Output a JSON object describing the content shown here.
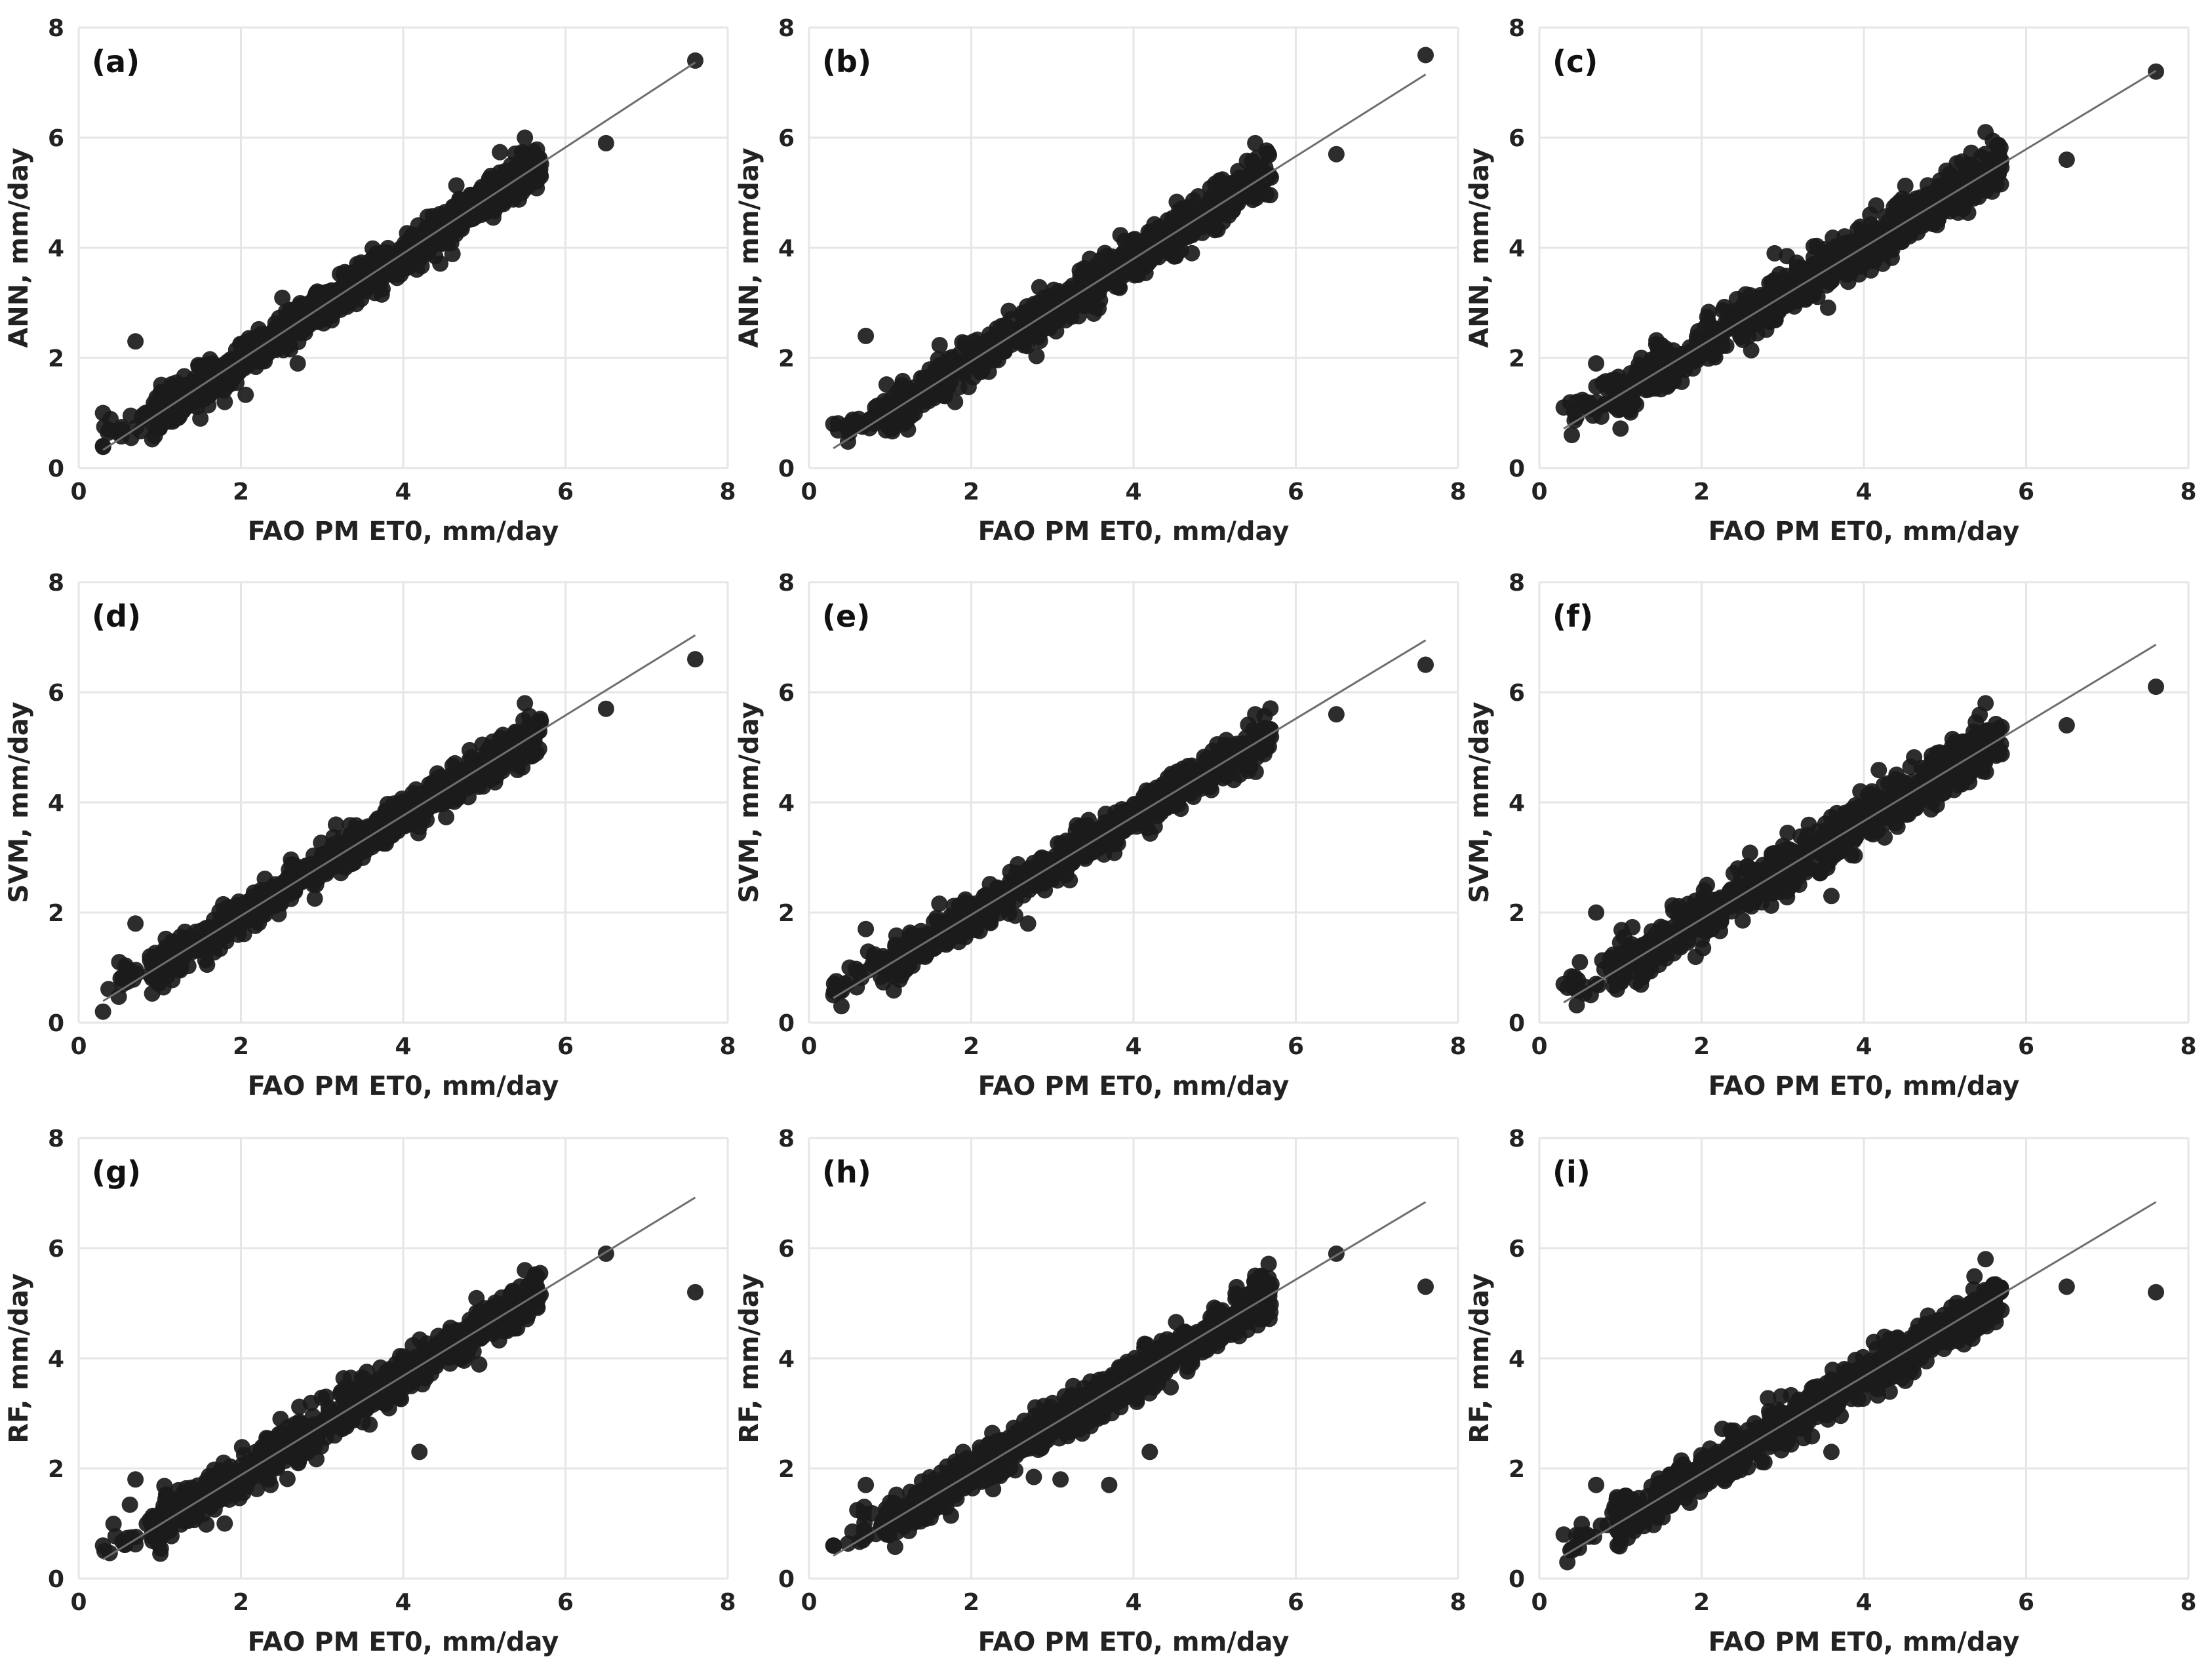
{
  "colors": {
    "point": "#1b1b1b",
    "fit_line": "#6e6e6e",
    "grid": "#e6e6e6",
    "background": "#ffffff"
  },
  "chart_data": [
    {
      "id": "a",
      "type": "scatter",
      "panel_label": "(a)",
      "model": "ANN",
      "title": "",
      "xlabel": "FAO PM ET0, mm/day",
      "ylabel": "ANN, mm/day",
      "xlim": [
        0,
        8
      ],
      "ylim": [
        0,
        8
      ],
      "xticks": [
        "0",
        "2",
        "4",
        "6",
        "8"
      ],
      "yticks": [
        "0",
        "2",
        "4",
        "6",
        "8"
      ],
      "fit": {
        "slope": 0.964,
        "intercept": 0.04
      },
      "noise": 0.2,
      "seed": 11,
      "n_cloud": 700,
      "points": [
        [
          0.3,
          0.4
        ],
        [
          0.3,
          1.0
        ],
        [
          0.7,
          2.3
        ],
        [
          1.5,
          0.9
        ],
        [
          1.8,
          1.2
        ],
        [
          2.7,
          1.9
        ],
        [
          5.5,
          6.0
        ],
        [
          6.5,
          5.9
        ],
        [
          7.6,
          7.4
        ]
      ]
    },
    {
      "id": "b",
      "type": "scatter",
      "panel_label": "(b)",
      "model": "ANN",
      "title": "",
      "xlabel": "FAO PM ET0, mm/day",
      "ylabel": "ANN, mm/day",
      "xlim": [
        0,
        8
      ],
      "ylim": [
        0,
        8
      ],
      "xticks": [
        "0",
        "2",
        "4",
        "6",
        "8"
      ],
      "yticks": [
        "0",
        "2",
        "4",
        "6",
        "8"
      ],
      "fit": {
        "slope": 0.93,
        "intercept": 0.08
      },
      "noise": 0.2,
      "seed": 23,
      "n_cloud": 700,
      "points": [
        [
          0.3,
          0.8
        ],
        [
          0.7,
          2.4
        ],
        [
          1.8,
          1.2
        ],
        [
          5.5,
          5.9
        ],
        [
          6.5,
          5.7
        ],
        [
          7.6,
          7.5
        ]
      ]
    },
    {
      "id": "c",
      "type": "scatter",
      "panel_label": "(c)",
      "model": "ANN",
      "title": "",
      "xlabel": "FAO PM ET0, mm/day",
      "ylabel": "ANN, mm/day",
      "xlim": [
        0,
        8
      ],
      "ylim": [
        0,
        8
      ],
      "xticks": [
        "0",
        "2",
        "4",
        "6",
        "8"
      ],
      "yticks": [
        "0",
        "2",
        "4",
        "6",
        "8"
      ],
      "fit": {
        "slope": 0.89,
        "intercept": 0.45
      },
      "noise": 0.22,
      "seed": 37,
      "n_cloud": 700,
      "points": [
        [
          0.3,
          1.1
        ],
        [
          0.4,
          0.6
        ],
        [
          0.7,
          1.9
        ],
        [
          2.9,
          3.9
        ],
        [
          5.5,
          6.1
        ],
        [
          6.5,
          5.6
        ],
        [
          7.6,
          7.2
        ]
      ]
    },
    {
      "id": "d",
      "type": "scatter",
      "panel_label": "(d)",
      "model": "SVM",
      "title": "",
      "xlabel": "FAO PM ET0, mm/day",
      "ylabel": "SVM, mm/day",
      "xlim": [
        0,
        8
      ],
      "ylim": [
        0,
        8
      ],
      "xticks": [
        "0",
        "2",
        "4",
        "6",
        "8"
      ],
      "yticks": [
        "0",
        "2",
        "4",
        "6",
        "8"
      ],
      "fit": {
        "slope": 0.91,
        "intercept": 0.12
      },
      "noise": 0.18,
      "seed": 41,
      "n_cloud": 700,
      "points": [
        [
          0.3,
          0.2
        ],
        [
          0.5,
          1.1
        ],
        [
          0.7,
          1.8
        ],
        [
          5.5,
          5.8
        ],
        [
          6.5,
          5.7
        ],
        [
          7.6,
          6.6
        ]
      ]
    },
    {
      "id": "e",
      "type": "scatter",
      "panel_label": "(e)",
      "model": "SVM",
      "title": "",
      "xlabel": "FAO PM ET0, mm/day",
      "ylabel": "SVM, mm/day",
      "xlim": [
        0,
        8
      ],
      "ylim": [
        0,
        8
      ],
      "xticks": [
        "0",
        "2",
        "4",
        "6",
        "8"
      ],
      "yticks": [
        "0",
        "2",
        "4",
        "6",
        "8"
      ],
      "fit": {
        "slope": 0.89,
        "intercept": 0.18
      },
      "noise": 0.17,
      "seed": 53,
      "n_cloud": 700,
      "points": [
        [
          0.3,
          0.5
        ],
        [
          0.4,
          0.3
        ],
        [
          0.5,
          1.0
        ],
        [
          0.7,
          1.7
        ],
        [
          2.7,
          1.8
        ],
        [
          5.5,
          5.6
        ],
        [
          6.5,
          5.6
        ],
        [
          7.6,
          6.5
        ]
      ]
    },
    {
      "id": "f",
      "type": "scatter",
      "panel_label": "(f)",
      "model": "SVM",
      "title": "",
      "xlabel": "FAO PM ET0, mm/day",
      "ylabel": "SVM, mm/day",
      "xlim": [
        0,
        8
      ],
      "ylim": [
        0,
        8
      ],
      "xticks": [
        "0",
        "2",
        "4",
        "6",
        "8"
      ],
      "yticks": [
        "0",
        "2",
        "4",
        "6",
        "8"
      ],
      "fit": {
        "slope": 0.89,
        "intercept": 0.1
      },
      "noise": 0.24,
      "seed": 67,
      "n_cloud": 700,
      "points": [
        [
          0.3,
          0.7
        ],
        [
          0.5,
          1.1
        ],
        [
          0.7,
          2.0
        ],
        [
          3.6,
          2.3
        ],
        [
          5.5,
          5.8
        ],
        [
          6.5,
          5.4
        ],
        [
          7.6,
          6.1
        ]
      ]
    },
    {
      "id": "g",
      "type": "scatter",
      "panel_label": "(g)",
      "model": "RF",
      "title": "",
      "xlabel": "FAO PM ET0, mm/day",
      "ylabel": "RF, mm/day",
      "xlim": [
        0,
        8
      ],
      "ylim": [
        0,
        8
      ],
      "xticks": [
        "0",
        "2",
        "4",
        "6",
        "8"
      ],
      "yticks": [
        "0",
        "2",
        "4",
        "6",
        "8"
      ],
      "fit": {
        "slope": 0.9,
        "intercept": 0.08
      },
      "noise": 0.21,
      "seed": 71,
      "n_cloud": 700,
      "points": [
        [
          0.3,
          0.6
        ],
        [
          0.7,
          1.8
        ],
        [
          1.8,
          1.0
        ],
        [
          4.2,
          2.3
        ],
        [
          5.5,
          5.6
        ],
        [
          6.5,
          5.9
        ],
        [
          7.6,
          5.2
        ]
      ]
    },
    {
      "id": "h",
      "type": "scatter",
      "panel_label": "(h)",
      "model": "RF",
      "title": "",
      "xlabel": "FAO PM ET0, mm/day",
      "ylabel": "RF, mm/day",
      "xlim": [
        0,
        8
      ],
      "ylim": [
        0,
        8
      ],
      "xticks": [
        "0",
        "2",
        "4",
        "6",
        "8"
      ],
      "yticks": [
        "0",
        "2",
        "4",
        "6",
        "8"
      ],
      "fit": {
        "slope": 0.88,
        "intercept": 0.15
      },
      "noise": 0.21,
      "seed": 83,
      "n_cloud": 700,
      "points": [
        [
          0.3,
          0.6
        ],
        [
          0.7,
          1.7
        ],
        [
          3.1,
          1.8
        ],
        [
          3.7,
          1.7
        ],
        [
          4.2,
          2.3
        ],
        [
          5.5,
          5.5
        ],
        [
          6.5,
          5.9
        ],
        [
          7.6,
          5.3
        ]
      ]
    },
    {
      "id": "i",
      "type": "scatter",
      "panel_label": "(i)",
      "model": "RF",
      "title": "",
      "xlabel": "FAO PM ET0, mm/day",
      "ylabel": "RF, mm/day",
      "xlim": [
        0,
        8
      ],
      "ylim": [
        0,
        8
      ],
      "xticks": [
        "0",
        "2",
        "4",
        "6",
        "8"
      ],
      "yticks": [
        "0",
        "2",
        "4",
        "6",
        "8"
      ],
      "fit": {
        "slope": 0.88,
        "intercept": 0.15
      },
      "noise": 0.21,
      "seed": 97,
      "n_cloud": 700,
      "points": [
        [
          0.3,
          0.8
        ],
        [
          0.7,
          1.7
        ],
        [
          3.6,
          2.3
        ],
        [
          5.5,
          5.8
        ],
        [
          6.5,
          5.3
        ],
        [
          7.6,
          5.2
        ]
      ]
    }
  ]
}
